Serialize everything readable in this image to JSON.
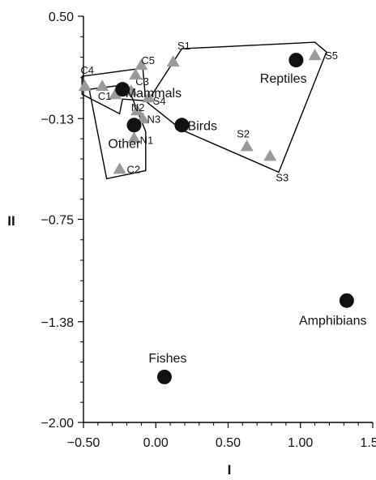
{
  "chart_data": {
    "type": "scatter",
    "xlabel": "I",
    "ylabel": "II",
    "xlim": [
      -0.5,
      1.5
    ],
    "ylim": [
      -2.0,
      0.5
    ],
    "xticks": [
      -0.5,
      0,
      0.5,
      1.0,
      1.5
    ],
    "xtick_labels": [
      "−0.50",
      "0.00",
      "0.50",
      "1.00",
      "1.50"
    ],
    "yticks": [
      0.5,
      -0.13,
      -0.75,
      -1.38,
      -2.0
    ],
    "ytick_labels": [
      "0.50",
      "−0.13",
      "−0.75",
      "−1.38",
      "−2.00"
    ],
    "colors": {
      "triangle": "#9a9a9a",
      "circle": "#111111",
      "axis": "#000000"
    },
    "groups": [
      {
        "label": "Mammals",
        "x": -0.23,
        "y": 0.05,
        "label_dx": 0.02,
        "label_dy": -0.02
      },
      {
        "label": "Birds",
        "x": 0.18,
        "y": -0.17,
        "label_dx": 0.04,
        "label_dy": 0.0
      },
      {
        "label": "Other",
        "x": -0.15,
        "y": -0.17,
        "label_dx": -0.18,
        "label_dy": -0.11
      },
      {
        "label": "Reptiles",
        "x": 0.97,
        "y": 0.23,
        "label_dx": -0.25,
        "label_dy": -0.11
      },
      {
        "label": "Amphibians",
        "x": 1.32,
        "y": -1.25,
        "label_dx": -0.33,
        "label_dy": -0.12
      },
      {
        "label": "Fishes",
        "x": 0.06,
        "y": -1.72,
        "label_dx": -0.11,
        "label_dy": 0.12
      }
    ],
    "samples": [
      {
        "label": "C1",
        "x": -0.28,
        "y": 0.02
      },
      {
        "label": "C2",
        "x": -0.25,
        "y": -0.44
      },
      {
        "label": "C3",
        "x": -0.17,
        "y": 0.04
      },
      {
        "label": "C4",
        "x": -0.49,
        "y": 0.07
      },
      {
        "label": "C5",
        "x": -0.1,
        "y": 0.2
      },
      {
        "label": "",
        "x": -0.37,
        "y": 0.07
      },
      {
        "label": "",
        "x": -0.14,
        "y": 0.14
      },
      {
        "label": "S1",
        "x": 0.12,
        "y": 0.22
      },
      {
        "label": "S2",
        "x": 0.63,
        "y": -0.3
      },
      {
        "label": "S3",
        "x": 0.79,
        "y": -0.36
      },
      {
        "label": "S4",
        "x": -0.05,
        "y": 0.0
      },
      {
        "label": "S5",
        "x": 1.1,
        "y": 0.26
      },
      {
        "label": "N1",
        "x": -0.15,
        "y": -0.25
      },
      {
        "label": "N2",
        "x": -0.13,
        "y": -0.08
      },
      {
        "label": "N3",
        "x": -0.09,
        "y": -0.13
      }
    ],
    "sample_label_offsets": {
      "C1": [
        -0.12,
        -0.01
      ],
      "C2": [
        0.05,
        0.0
      ],
      "C3": [
        0.03,
        0.06
      ],
      "C4": [
        -0.03,
        0.1
      ],
      "C5": [
        0.0,
        0.03
      ],
      "S1": [
        0.03,
        0.1
      ],
      "S2": [
        -0.07,
        0.08
      ],
      "S3": [
        0.04,
        -0.13
      ],
      "S4": [
        0.03,
        -0.02
      ],
      "S5": [
        0.07,
        0.0
      ],
      "N1": [
        0.04,
        -0.01
      ],
      "N2": [
        -0.04,
        0.02
      ],
      "N3": [
        0.03,
        0.0
      ]
    },
    "hulls": [
      {
        "name": "mammal-hull",
        "points": [
          [
            -0.51,
            0.13
          ],
          [
            -0.09,
            0.18
          ],
          [
            -0.07,
            -0.02
          ],
          [
            -0.23,
            -0.01
          ],
          [
            -0.25,
            -0.1
          ],
          [
            -0.51,
            0.02
          ]
        ]
      },
      {
        "name": "other-hull",
        "points": [
          [
            -0.46,
            0.05
          ],
          [
            -0.2,
            0.08
          ],
          [
            -0.07,
            -0.21
          ],
          [
            -0.07,
            -0.45
          ],
          [
            -0.34,
            -0.5
          ]
        ]
      },
      {
        "name": "bird-reptile-hull",
        "points": [
          [
            0.18,
            0.3
          ],
          [
            1.1,
            0.34
          ],
          [
            1.18,
            0.28
          ],
          [
            0.85,
            -0.46
          ],
          [
            0.18,
            -0.2
          ],
          [
            -0.06,
            -0.03
          ]
        ]
      }
    ]
  }
}
